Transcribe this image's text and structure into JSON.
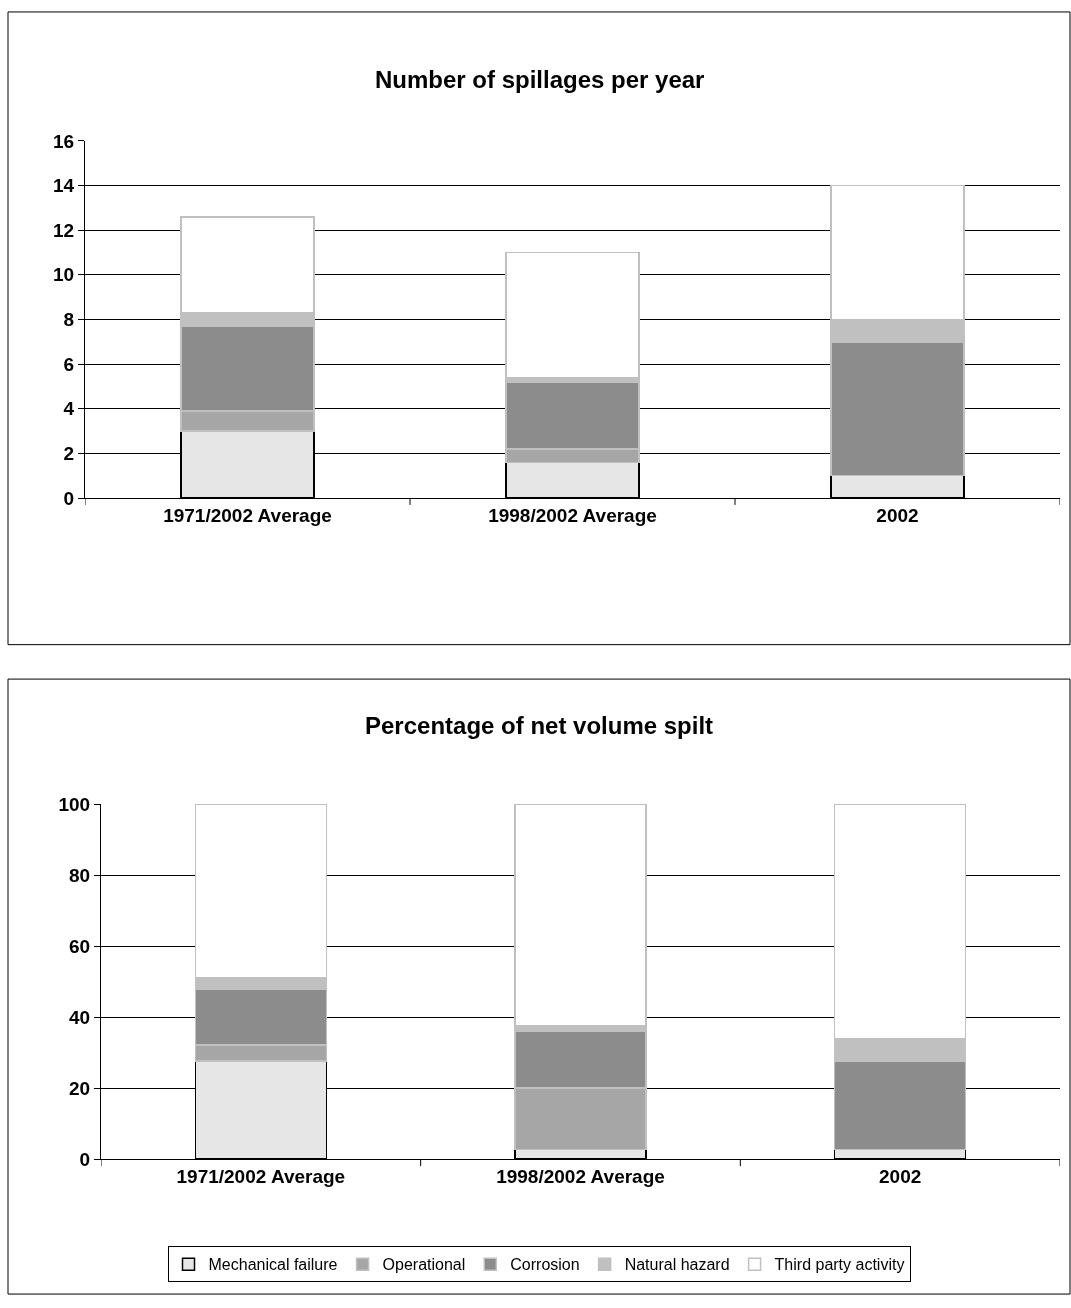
{
  "chart_data": [
    {
      "type": "bar",
      "title": "Number of spillages per year",
      "categories": [
        "1971/2002 Average",
        "1998/2002 Average",
        "2002"
      ],
      "stacked": true,
      "grid": "y",
      "legend": false,
      "ylim": [
        0,
        16
      ],
      "yticks": [
        0,
        2,
        4,
        6,
        8,
        10,
        12,
        14,
        16
      ],
      "series": [
        {
          "color": "#e6e6e6",
          "values": [
            3.0,
            1.6,
            1.0
          ]
        },
        {
          "color": "#a6a6a6",
          "values": [
            0.9,
            0.6,
            0
          ]
        },
        {
          "color": "#8c8c8c",
          "values": [
            3.8,
            3.0,
            6.0
          ]
        },
        {
          "color": "#c0c0c0",
          "values": [
            0.6,
            0.2,
            1.0
          ]
        },
        {
          "color": "#ffffff",
          "values": [
            4.3,
            5.6,
            6.0
          ]
        }
      ]
    },
    {
      "type": "bar",
      "title": "Percentage of net volume spilt",
      "categories": [
        "1971/2002 Average",
        "1998/2002 Average",
        "2002"
      ],
      "stacked": true,
      "grid": "y",
      "legend": "bottom",
      "ylim": [
        0,
        100
      ],
      "yticks": [
        0,
        20,
        40,
        60,
        80,
        100
      ],
      "series": [
        {
          "name": "Mechanical failure",
          "color": "#e6e6e6",
          "values": [
            27.7,
            2.8,
            2.8
          ]
        },
        {
          "name": "Operational",
          "color": "#a6a6a6",
          "values": [
            4.4,
            17.3,
            0
          ]
        },
        {
          "name": "Corrosion",
          "color": "#8c8c8c",
          "values": [
            15.7,
            15.8,
            24.7
          ]
        },
        {
          "name": "Natural hazard",
          "color": "#c0c0c0",
          "values": [
            3.2,
            1.7,
            6.5
          ]
        },
        {
          "name": "Third party activity",
          "color": "#ffffff",
          "values": [
            49.0,
            62.4,
            66.0
          ]
        }
      ]
    }
  ]
}
